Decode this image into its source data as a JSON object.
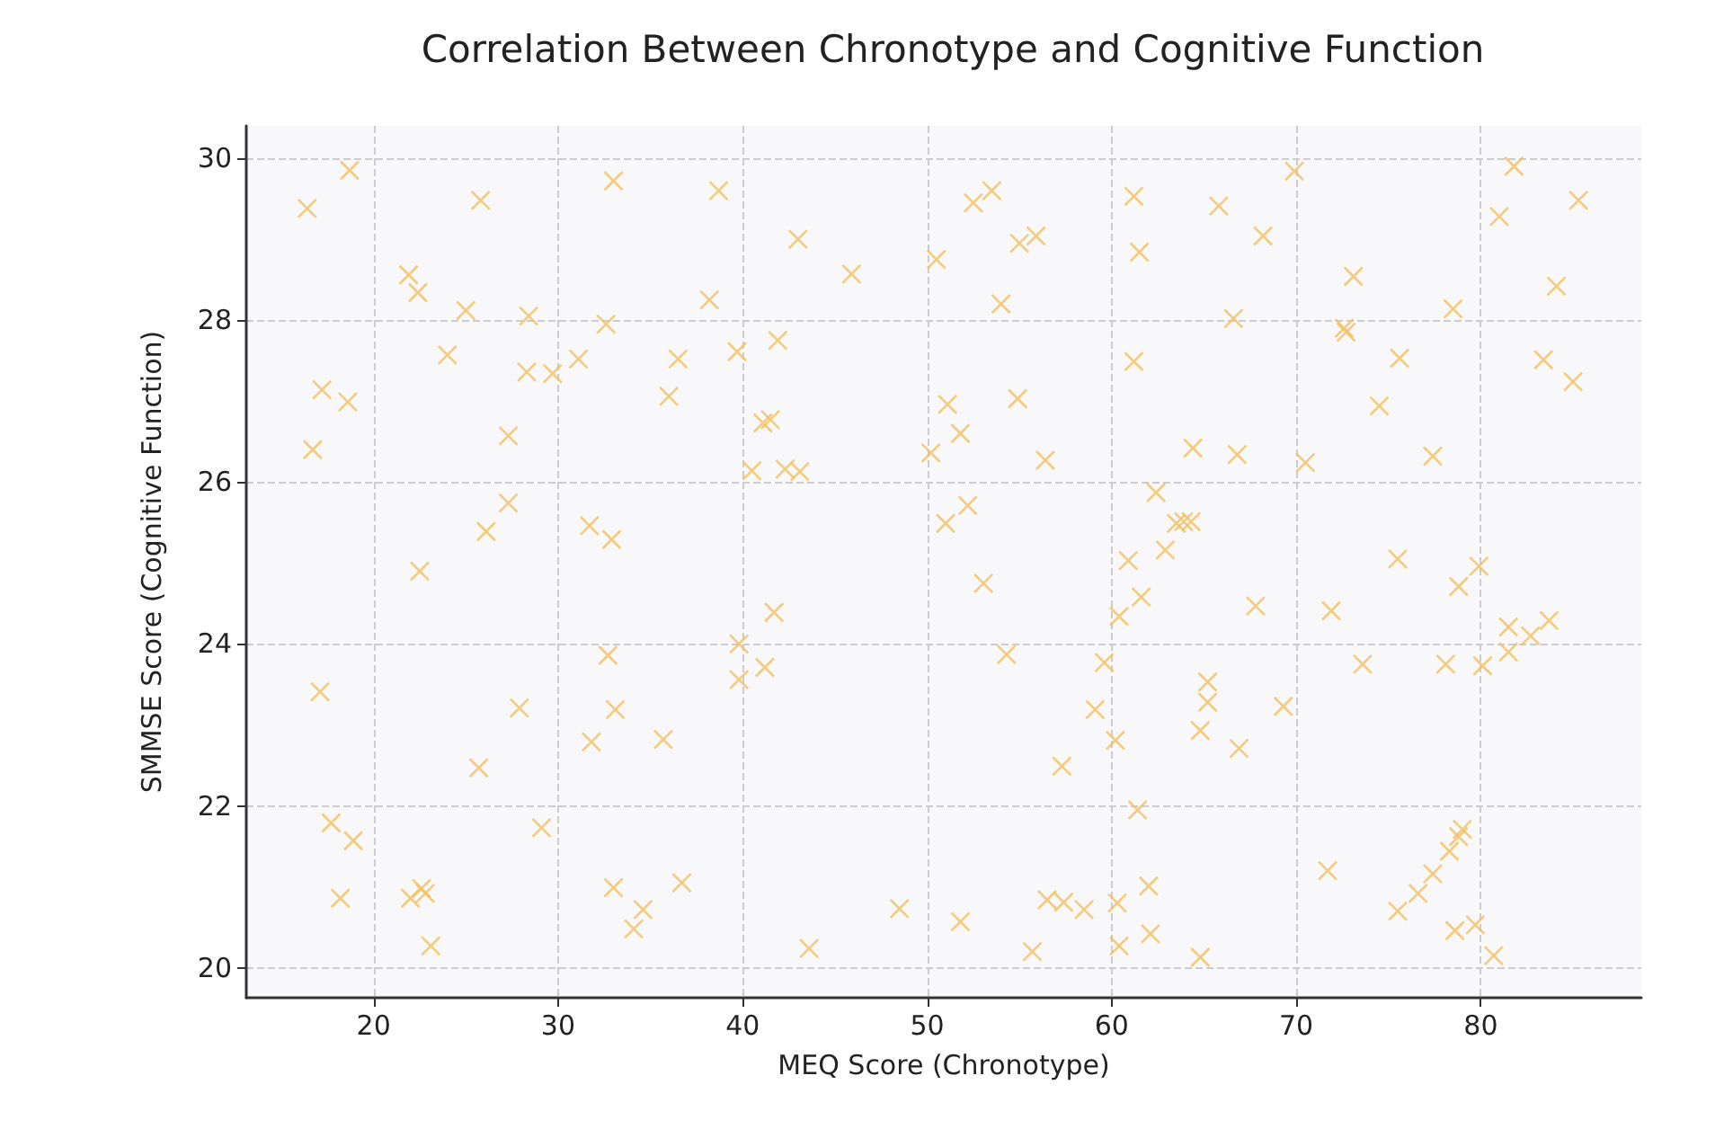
{
  "chart_data": {
    "type": "scatter",
    "title": "Correlation Between Chronotype and Cognitive Function",
    "xlabel": "MEQ Score (Chronotype)",
    "ylabel": "SMMSE Score (Cognitive Function)",
    "marker": "cross",
    "grid": true,
    "xlim": [
      13.1,
      88.7
    ],
    "ylim": [
      19.63,
      30.4
    ],
    "xticks": [
      20,
      30,
      40,
      50,
      60,
      70,
      80
    ],
    "yticks": [
      20,
      22,
      24,
      26,
      28,
      30
    ],
    "series": [
      {
        "color": "#f2bf5c",
        "x": [
          18.7,
          16.4,
          25.8,
          33.0,
          38.7,
          21.9,
          22.4,
          25.0,
          28.4,
          38.2,
          32.6,
          24.0,
          17.2,
          18.6,
          28.3,
          29.7,
          31.1,
          36.5,
          36.0,
          16.7,
          27.3,
          27.3,
          26.1,
          31.7,
          32.9,
          22.5,
          43.0,
          45.9,
          52.5,
          53.5,
          50.5,
          55.0,
          55.9,
          54.0,
          61.2,
          61.5,
          61.2,
          41.9,
          39.7,
          41.5,
          41.1,
          40.5,
          42.3,
          43.1,
          51.1,
          54.9,
          51.8,
          50.2,
          56.4,
          62.4,
          63.5,
          62.9,
          60.9,
          52.2,
          51.0,
          53.05,
          69.9,
          65.8,
          68.2,
          81.8,
          85.3,
          81.0,
          84.1,
          73.1,
          78.5,
          66.6,
          72.6,
          72.7,
          75.6,
          83.4,
          85.0,
          74.5,
          64.4,
          66.8,
          70.5,
          77.4,
          63.9,
          64.3,
          75.5,
          79.9,
          78.8,
          67.8,
          71.9,
          81.5,
          82.7,
          83.7,
          81.5,
          73.6,
          78.1,
          80.1,
          65.2,
          65.2,
          64.8,
          69.3,
          66.9,
          79.0,
          78.8,
          78.3,
          77.4,
          76.6,
          75.5,
          71.7,
          78.6,
          79.7,
          80.7,
          64.8,
          41.7,
          39.8,
          41.2,
          39.8,
          54.3,
          60.4,
          61.6,
          59.6,
          59.1,
          60.2,
          57.3,
          61.4,
          48.5,
          51.8,
          43.6,
          55.7,
          56.5,
          57.4,
          58.5,
          60.3,
          62.0,
          62.1,
          60.4,
          17.1,
          32.7,
          33.1,
          27.9,
          31.8,
          35.7,
          25.7,
          17.7,
          18.9,
          29.1,
          18.2,
          22.0,
          22.6,
          22.8,
          23.1,
          33.0,
          36.7,
          34.6,
          34.1
        ],
        "values": [
          29.85,
          29.38,
          29.48,
          29.72,
          29.6,
          28.56,
          28.34,
          28.12,
          28.05,
          28.25,
          27.95,
          27.57,
          27.14,
          26.99,
          27.36,
          27.34,
          27.52,
          27.52,
          27.06,
          26.4,
          26.57,
          25.74,
          25.39,
          25.46,
          25.29,
          24.9,
          29.0,
          28.57,
          29.45,
          29.6,
          28.75,
          28.95,
          29.04,
          28.2,
          29.53,
          28.84,
          27.49,
          27.75,
          27.61,
          26.77,
          26.73,
          26.14,
          26.16,
          26.13,
          26.96,
          27.03,
          26.6,
          26.36,
          26.27,
          25.87,
          25.49,
          25.16,
          25.03,
          25.71,
          25.49,
          24.75,
          29.84,
          29.41,
          29.04,
          29.9,
          29.48,
          29.28,
          28.42,
          28.54,
          28.14,
          28.02,
          27.9,
          27.85,
          27.53,
          27.51,
          27.24,
          26.94,
          26.42,
          26.34,
          26.24,
          26.32,
          25.51,
          25.51,
          25.05,
          24.96,
          24.71,
          24.47,
          24.41,
          24.21,
          24.1,
          24.29,
          23.9,
          23.75,
          23.75,
          23.73,
          23.53,
          23.28,
          22.93,
          23.23,
          22.71,
          21.71,
          21.62,
          21.44,
          21.16,
          20.92,
          20.7,
          21.2,
          20.46,
          20.53,
          20.15,
          20.13,
          24.39,
          24.0,
          23.71,
          23.56,
          23.87,
          24.34,
          24.58,
          23.77,
          23.19,
          22.81,
          22.49,
          21.95,
          20.73,
          20.57,
          20.24,
          20.2,
          20.84,
          20.81,
          20.72,
          20.8,
          21.01,
          20.42,
          20.27,
          23.41,
          23.86,
          23.19,
          23.21,
          22.79,
          22.82,
          22.47,
          21.79,
          21.57,
          21.73,
          20.86,
          20.86,
          20.98,
          20.92,
          20.27,
          20.99,
          21.05,
          20.72,
          20.48
        ]
      }
    ]
  }
}
